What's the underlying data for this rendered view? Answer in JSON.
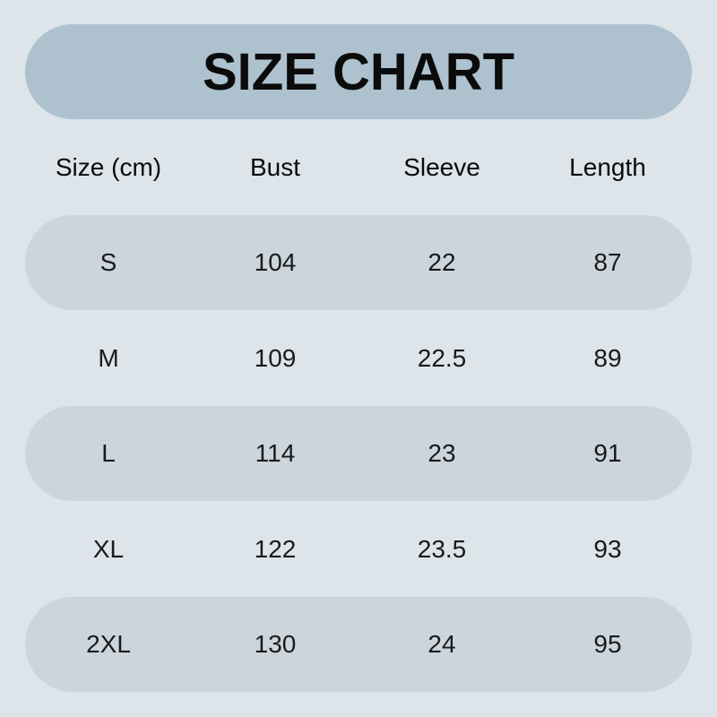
{
  "title": "SIZE CHART",
  "headers": [
    "Size (cm)",
    "Bust",
    "Sleeve",
    "Length"
  ],
  "rows": [
    [
      "S",
      "104",
      "22",
      "87"
    ],
    [
      "M",
      "109",
      "22.5",
      "89"
    ],
    [
      "L",
      "114",
      "23",
      "91"
    ],
    [
      "XL",
      "122",
      "23.5",
      "93"
    ],
    [
      "2XL",
      "130",
      "24",
      "95"
    ]
  ],
  "colors": {
    "background": "#dde4ea",
    "title_band": "#adc2ce",
    "row_band": "#ccd5dc"
  }
}
